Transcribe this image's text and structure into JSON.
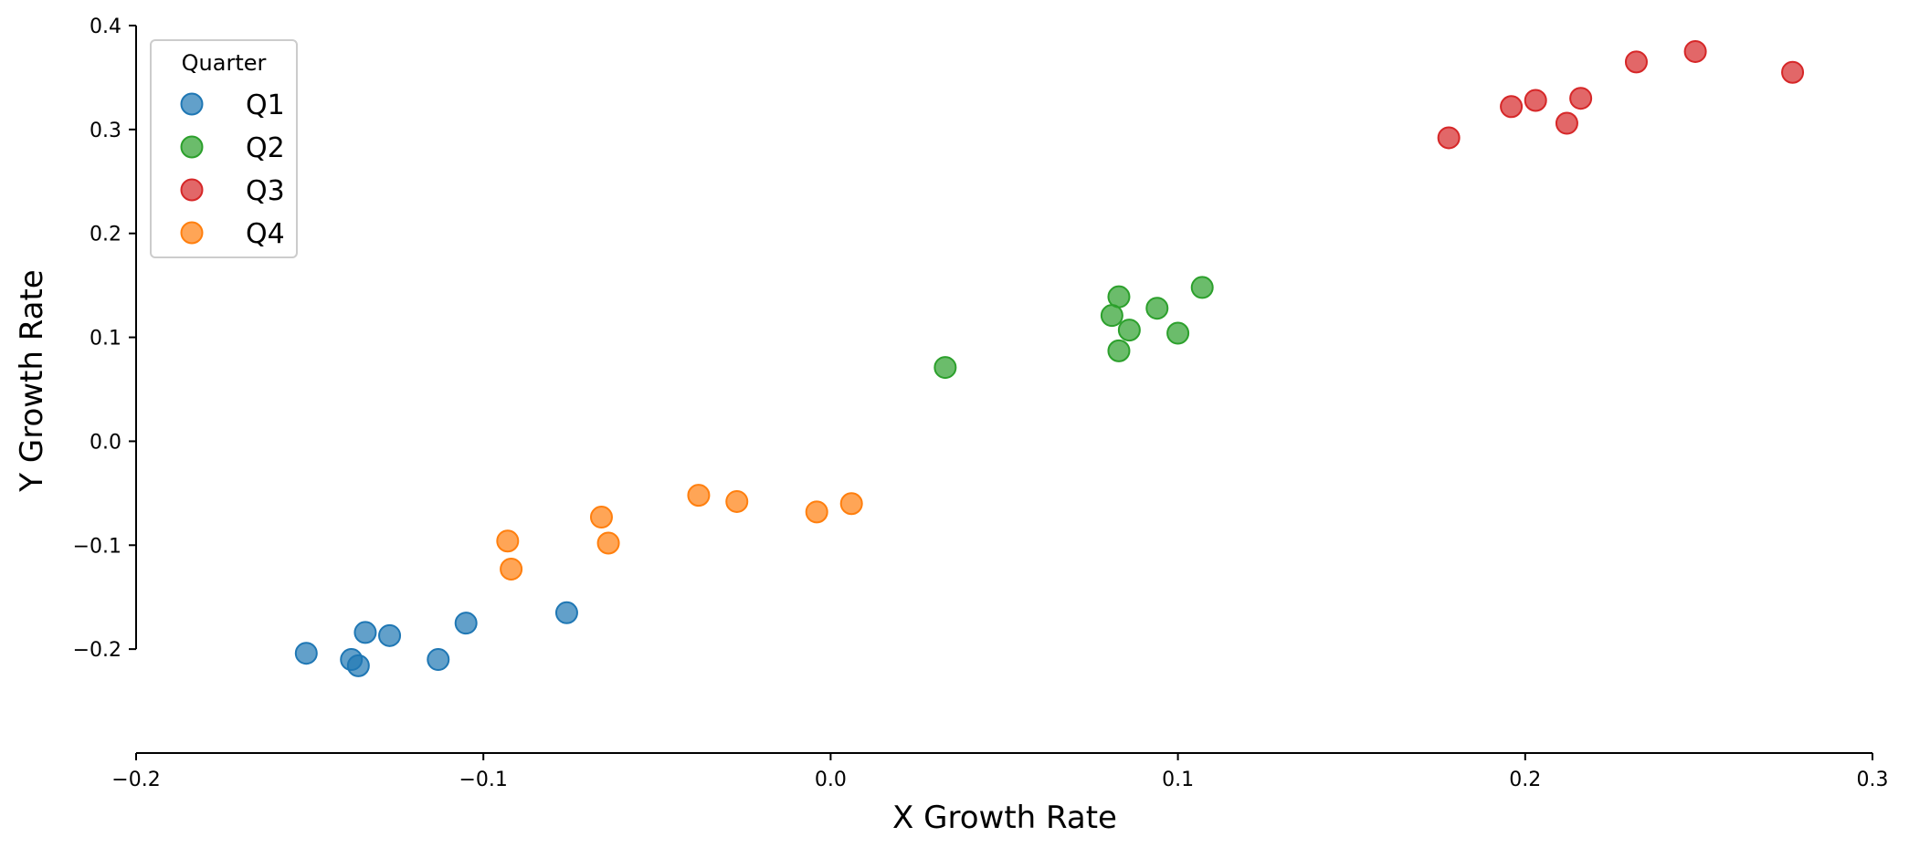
{
  "chart_data": {
    "type": "scatter",
    "title": "",
    "xlabel": "X Growth Rate",
    "ylabel": "Y Growth Rate",
    "xlim": [
      -0.2,
      0.3
    ],
    "ylim": [
      -0.3,
      0.4
    ],
    "x_ticks": [
      -0.2,
      -0.1,
      0.0,
      0.1,
      0.2,
      0.3
    ],
    "x_tick_labels": [
      "−0.2",
      "−0.1",
      "0.0",
      "0.1",
      "0.2",
      "0.3"
    ],
    "y_ticks": [
      -0.2,
      -0.1,
      0.0,
      0.1,
      0.2,
      0.3,
      0.4
    ],
    "y_tick_labels": [
      "−0.2",
      "−0.1",
      "0.0",
      "0.1",
      "0.2",
      "0.3",
      "0.4"
    ],
    "grid": false,
    "legend": {
      "title": "Quarter",
      "position": "top-left"
    },
    "series": [
      {
        "name": "Q1",
        "color": "#1f77b4",
        "points": [
          [
            -0.151,
            -0.204
          ],
          [
            -0.138,
            -0.21
          ],
          [
            -0.136,
            -0.216
          ],
          [
            -0.134,
            -0.184
          ],
          [
            -0.127,
            -0.187
          ],
          [
            -0.113,
            -0.21
          ],
          [
            -0.105,
            -0.175
          ],
          [
            -0.076,
            -0.165
          ]
        ]
      },
      {
        "name": "Q2",
        "color": "#2ca02c",
        "points": [
          [
            0.033,
            0.071
          ],
          [
            0.081,
            0.121
          ],
          [
            0.083,
            0.139
          ],
          [
            0.083,
            0.087
          ],
          [
            0.086,
            0.107
          ],
          [
            0.094,
            0.128
          ],
          [
            0.1,
            0.104
          ],
          [
            0.107,
            0.148
          ]
        ]
      },
      {
        "name": "Q3",
        "color": "#d62728",
        "points": [
          [
            0.178,
            0.292
          ],
          [
            0.196,
            0.322
          ],
          [
            0.203,
            0.328
          ],
          [
            0.212,
            0.306
          ],
          [
            0.216,
            0.33
          ],
          [
            0.232,
            0.365
          ],
          [
            0.249,
            0.375
          ],
          [
            0.277,
            0.355
          ]
        ]
      },
      {
        "name": "Q4",
        "color": "#ff7f0e",
        "points": [
          [
            -0.093,
            -0.096
          ],
          [
            -0.092,
            -0.123
          ],
          [
            -0.066,
            -0.073
          ],
          [
            -0.064,
            -0.098
          ],
          [
            -0.038,
            -0.052
          ],
          [
            -0.027,
            -0.058
          ],
          [
            -0.004,
            -0.068
          ],
          [
            0.006,
            -0.06
          ]
        ]
      }
    ]
  }
}
